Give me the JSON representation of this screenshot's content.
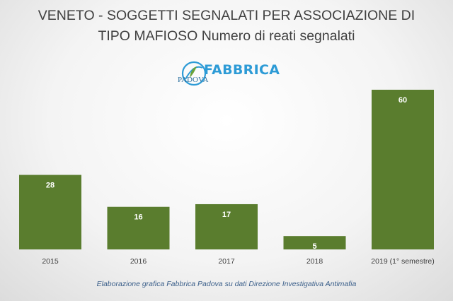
{
  "logo": {
    "name": "FABBRICA",
    "subname": "PADOVA"
  },
  "source": "Elaborazione grafica Fabbrica Padova su dati Direzione Investigativa Antimafia",
  "colors": {
    "bar": "#5a7d2e",
    "label": "#ffffff",
    "axis_text": "#404040"
  },
  "chart_data": {
    "type": "bar",
    "title_lines": [
      "VENETO - SOGGETTI SEGNALATI PER ASSOCIAZIONE DI",
      "TIPO MAFIOSO Numero di reati segnalati"
    ],
    "categories": [
      "2015",
      "2016",
      "2017",
      "2018",
      "2019 (1° semestre)"
    ],
    "values": [
      28,
      16,
      17,
      5,
      60
    ],
    "data_labels": [
      "28",
      "16",
      "17",
      "5",
      "60"
    ],
    "ylim": [
      0,
      60
    ],
    "grid": false,
    "legend": "none"
  }
}
